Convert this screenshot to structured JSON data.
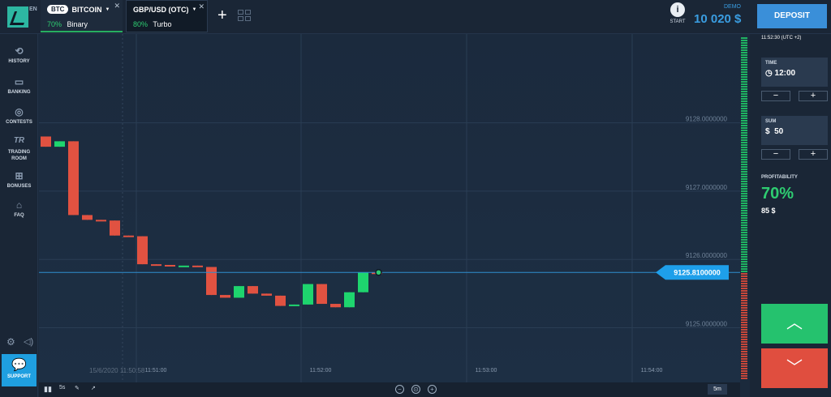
{
  "header": {
    "lang": "EN",
    "active_asset": {
      "code": "BTC",
      "name": "BITCOIN",
      "pct": "70%",
      "mode": "Binary"
    },
    "other_asset": {
      "name": "GBP/USD (OTC)",
      "pct": "80%",
      "mode": "Turbo"
    },
    "start_label": "START",
    "demo_label": "DEMO",
    "balance": "10 020 $",
    "deposit_label": "DEPOSIT"
  },
  "sidebar": {
    "items": [
      {
        "label": "HISTORY",
        "icon": "history-icon"
      },
      {
        "label": "BANKING",
        "icon": "wallet-icon"
      },
      {
        "label": "CONTESTS",
        "icon": "contests-icon"
      },
      {
        "label": "TRADING ROOM",
        "icon": "tr-icon"
      },
      {
        "label": "BONUSES",
        "icon": "gift-icon"
      },
      {
        "label": "FAQ",
        "icon": "faq-icon"
      }
    ],
    "support_label": "SUPPORT"
  },
  "chart_data": {
    "type": "candlestick",
    "price_ticks": [
      "9128.0000000",
      "9127.0000000",
      "9126.0000000",
      "9125.0000000"
    ],
    "price_values": [
      9128,
      9127,
      9126,
      9125
    ],
    "current_price": "9125.8100000",
    "current_value": 9125.81,
    "time_labels": [
      "11:51:00",
      "11:52:00",
      "11:53:00",
      "11:54:00"
    ],
    "start_timestamp": "15/6/2020 11:50:58",
    "ylim": [
      9124.2,
      9129.3
    ],
    "candles": [
      {
        "o": 9127.8,
        "c": 9127.65,
        "h": 9127.8,
        "l": 9127.65
      },
      {
        "o": 9127.65,
        "c": 9127.73,
        "h": 9127.73,
        "l": 9127.65
      },
      {
        "o": 9127.73,
        "c": 9126.65,
        "h": 9127.73,
        "l": 9126.65
      },
      {
        "o": 9126.65,
        "c": 9126.58,
        "h": 9126.65,
        "l": 9126.58
      },
      {
        "o": 9126.58,
        "c": 9126.57,
        "h": 9126.58,
        "l": 9126.57
      },
      {
        "o": 9126.57,
        "c": 9126.35,
        "h": 9126.57,
        "l": 9126.35
      },
      {
        "o": 9126.35,
        "c": 9126.34,
        "h": 9126.35,
        "l": 9126.34
      },
      {
        "o": 9126.34,
        "c": 9125.93,
        "h": 9126.34,
        "l": 9125.93
      },
      {
        "o": 9125.93,
        "c": 9125.92,
        "h": 9125.93,
        "l": 9125.92
      },
      {
        "o": 9125.92,
        "c": 9125.91,
        "h": 9125.92,
        "l": 9125.91
      },
      {
        "o": 9125.91,
        "c": 9125.91,
        "h": 9125.91,
        "l": 9125.91
      },
      {
        "o": 9125.91,
        "c": 9125.89,
        "h": 9125.91,
        "l": 9125.89
      },
      {
        "o": 9125.89,
        "c": 9125.48,
        "h": 9125.89,
        "l": 9125.48
      },
      {
        "o": 9125.48,
        "c": 9125.44,
        "h": 9125.48,
        "l": 9125.44
      },
      {
        "o": 9125.44,
        "c": 9125.61,
        "h": 9125.61,
        "l": 9125.44
      },
      {
        "o": 9125.61,
        "c": 9125.5,
        "h": 9125.61,
        "l": 9125.5
      },
      {
        "o": 9125.5,
        "c": 9125.47,
        "h": 9125.5,
        "l": 9125.47
      },
      {
        "o": 9125.47,
        "c": 9125.32,
        "h": 9125.47,
        "l": 9125.32
      },
      {
        "o": 9125.32,
        "c": 9125.34,
        "h": 9125.34,
        "l": 9125.32
      },
      {
        "o": 9125.34,
        "c": 9125.64,
        "h": 9125.64,
        "l": 9125.34
      },
      {
        "o": 9125.64,
        "c": 9125.35,
        "h": 9125.64,
        "l": 9125.35
      },
      {
        "o": 9125.35,
        "c": 9125.3,
        "h": 9125.35,
        "l": 9125.3
      },
      {
        "o": 9125.3,
        "c": 9125.52,
        "h": 9125.52,
        "l": 9125.3
      },
      {
        "o": 9125.52,
        "c": 9125.81,
        "h": 9125.81,
        "l": 9125.52
      },
      {
        "o": 9125.81,
        "c": 9125.8,
        "h": 9125.82,
        "l": 9125.8
      }
    ],
    "colors": {
      "up": "#1ed56e",
      "down": "#e15241",
      "price_line": "#2e8fd0"
    }
  },
  "toolbar": {
    "interval": "5s",
    "timeframe": "5m"
  },
  "panel": {
    "server_time": "11:52:30 (UTC +2)",
    "time_label": "TIME",
    "time_value": "12:00",
    "sum_label": "SUM",
    "sum_currency": "$",
    "sum_value": "50",
    "profit_label": "PROFITABILITY",
    "profit_pct": "70%",
    "profit_amount": "85 $"
  }
}
